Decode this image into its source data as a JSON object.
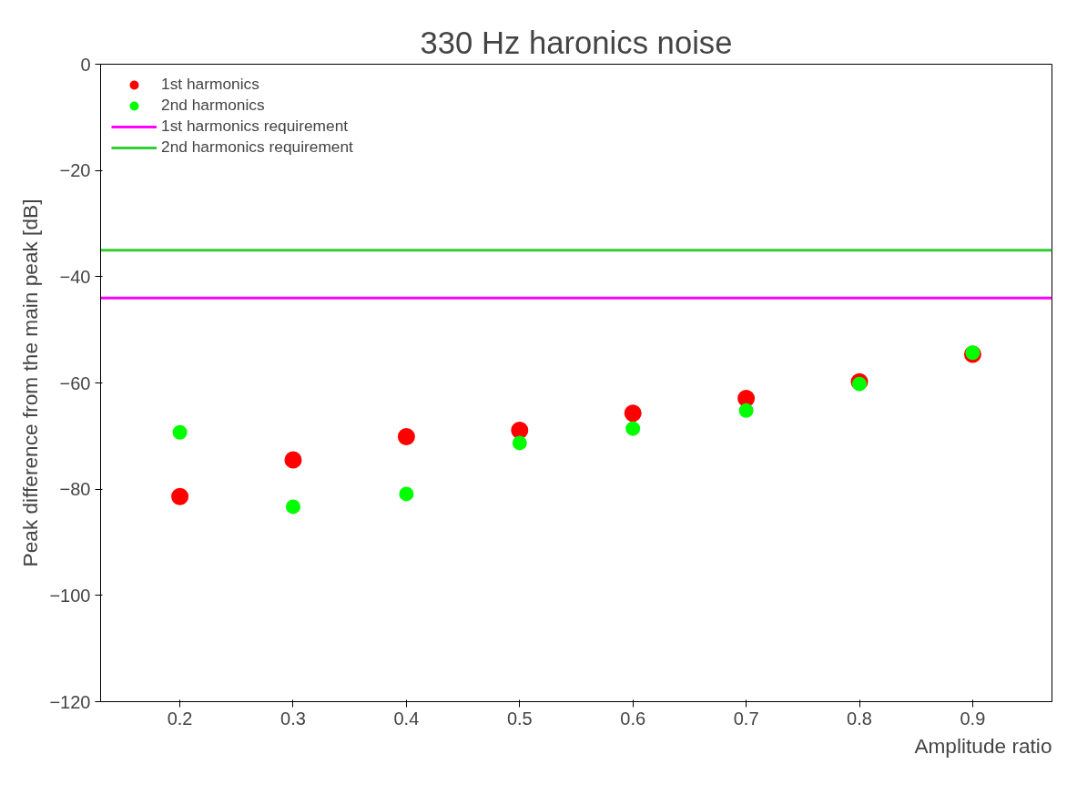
{
  "chart_data": {
    "type": "scatter",
    "title": "330 Hz haronics noise",
    "xlabel": "Amplitude ratio",
    "ylabel": "Peak difference from the main peak [dB]",
    "x": [
      0.2,
      0.3,
      0.4,
      0.5,
      0.6,
      0.7,
      0.8,
      0.9
    ],
    "series": [
      {
        "name": "1st harmonics",
        "color": "#ff0000",
        "values": [
          -81.4,
          -74.5,
          -70.1,
          -68.9,
          -65.7,
          -62.9,
          -59.8,
          -54.6
        ]
      },
      {
        "name": "2nd harmonics",
        "color": "#00ff00",
        "values": [
          -69.3,
          -83.3,
          -80.9,
          -71.3,
          -68.6,
          -65.2,
          -60.2,
          -54.3
        ]
      }
    ],
    "ref_lines": [
      {
        "axis": "y",
        "value": -44,
        "label": "1st harmonics requirement",
        "color": "#ff00ff"
      },
      {
        "axis": "y",
        "value": -35,
        "label": "2nd harmonics requirement",
        "color": "#33cc33"
      }
    ],
    "xlim": [
      0.13,
      0.97
    ],
    "ylim": [
      -120,
      0
    ],
    "xticks": [
      0.2,
      0.3,
      0.4,
      0.5,
      0.6,
      0.7,
      0.8,
      0.9
    ],
    "yticks": [
      0,
      -20,
      -40,
      -60,
      -80,
      -100,
      -120
    ],
    "grid": false,
    "legend": "top left",
    "marker": "circle"
  }
}
